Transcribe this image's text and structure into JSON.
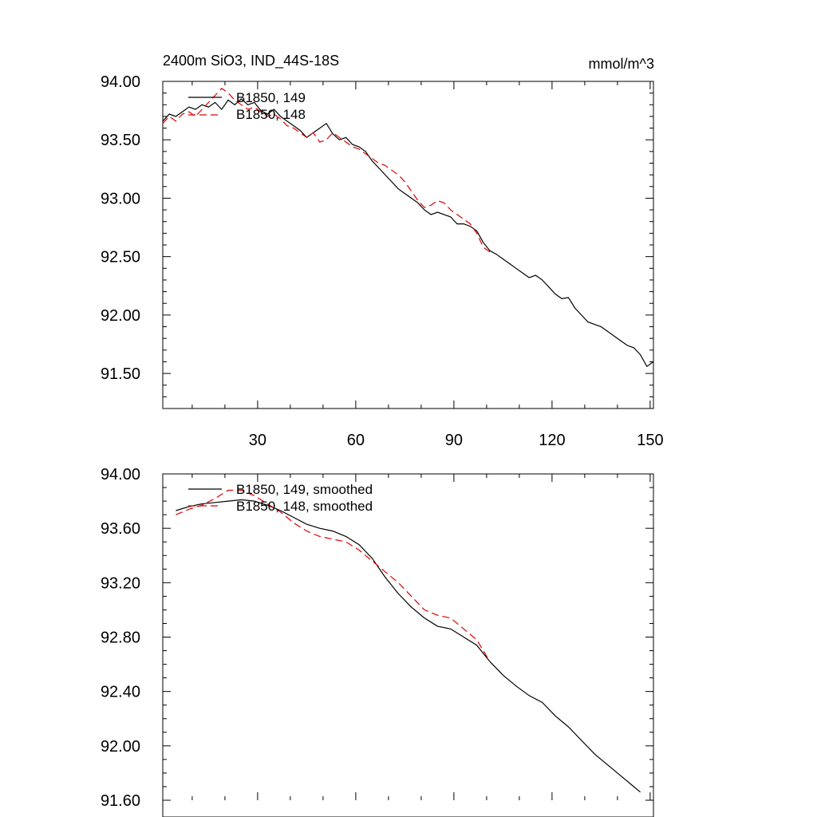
{
  "chart_data": [
    {
      "type": "line",
      "title": "2400m SiO3, IND_44S-18S",
      "units": "mmol/m^3",
      "xlim": [
        1,
        151
      ],
      "ylim": [
        91.2,
        94.0
      ],
      "xticks": [
        30,
        60,
        90,
        120,
        150
      ],
      "yticks": [
        91.5,
        92.0,
        92.5,
        93.0,
        93.5,
        94.0
      ],
      "ytick_labels": [
        "91.50",
        "92.00",
        "92.50",
        "93.00",
        "93.50",
        "94.00"
      ],
      "xtick_labels": [
        "30",
        "60",
        "90",
        "120",
        "150"
      ],
      "series": [
        {
          "name": "B1850, 149",
          "style": "solid",
          "color": "#000000",
          "points": [
            [
              1,
              93.66
            ],
            [
              3,
              93.72
            ],
            [
              5,
              93.7
            ],
            [
              7,
              93.74
            ],
            [
              9,
              93.78
            ],
            [
              11,
              93.76
            ],
            [
              13,
              93.8
            ],
            [
              15,
              93.78
            ],
            [
              17,
              93.82
            ],
            [
              19,
              93.76
            ],
            [
              21,
              93.84
            ],
            [
              23,
              93.8
            ],
            [
              25,
              93.85
            ],
            [
              27,
              93.8
            ],
            [
              29,
              93.82
            ],
            [
              31,
              93.75
            ],
            [
              33,
              93.72
            ],
            [
              35,
              93.76
            ],
            [
              37,
              93.7
            ],
            [
              39,
              93.66
            ],
            [
              41,
              93.62
            ],
            [
              43,
              93.58
            ],
            [
              45,
              93.52
            ],
            [
              47,
              93.56
            ],
            [
              49,
              93.6
            ],
            [
              51,
              93.64
            ],
            [
              53,
              93.55
            ],
            [
              55,
              93.5
            ],
            [
              57,
              93.52
            ],
            [
              59,
              93.46
            ],
            [
              61,
              93.44
            ],
            [
              63,
              93.4
            ],
            [
              65,
              93.32
            ],
            [
              67,
              93.26
            ],
            [
              69,
              93.2
            ],
            [
              71,
              93.14
            ],
            [
              73,
              93.08
            ],
            [
              75,
              93.04
            ],
            [
              77,
              93.0
            ],
            [
              79,
              92.96
            ],
            [
              81,
              92.9
            ],
            [
              83,
              92.86
            ],
            [
              85,
              92.88
            ],
            [
              87,
              92.86
            ],
            [
              89,
              92.84
            ],
            [
              91,
              92.78
            ],
            [
              93,
              92.78
            ],
            [
              95,
              92.76
            ],
            [
              97,
              92.72
            ],
            [
              99,
              92.62
            ],
            [
              101,
              92.55
            ],
            [
              103,
              92.52
            ],
            [
              105,
              92.48
            ],
            [
              107,
              92.44
            ],
            [
              109,
              92.4
            ],
            [
              111,
              92.36
            ],
            [
              113,
              92.32
            ],
            [
              115,
              92.34
            ],
            [
              117,
              92.3
            ],
            [
              119,
              92.24
            ],
            [
              121,
              92.18
            ],
            [
              123,
              92.14
            ],
            [
              125,
              92.15
            ],
            [
              127,
              92.06
            ],
            [
              129,
              92.0
            ],
            [
              131,
              91.94
            ],
            [
              133,
              91.92
            ],
            [
              135,
              91.9
            ],
            [
              137,
              91.86
            ],
            [
              139,
              91.82
            ],
            [
              141,
              91.78
            ],
            [
              143,
              91.74
            ],
            [
              145,
              91.72
            ],
            [
              147,
              91.66
            ],
            [
              149,
              91.56
            ],
            [
              151,
              91.6
            ]
          ]
        },
        {
          "name": "B1850, 148",
          "style": "dashed",
          "color": "#e00000",
          "points": [
            [
              1,
              93.64
            ],
            [
              3,
              93.7
            ],
            [
              5,
              93.66
            ],
            [
              7,
              93.72
            ],
            [
              9,
              93.74
            ],
            [
              11,
              93.7
            ],
            [
              13,
              93.76
            ],
            [
              15,
              93.82
            ],
            [
              17,
              93.88
            ],
            [
              19,
              93.94
            ],
            [
              21,
              93.9
            ],
            [
              23,
              93.84
            ],
            [
              25,
              93.8
            ],
            [
              27,
              93.76
            ],
            [
              29,
              93.78
            ],
            [
              31,
              93.74
            ],
            [
              33,
              93.7
            ],
            [
              35,
              93.72
            ],
            [
              37,
              93.68
            ],
            [
              39,
              93.62
            ],
            [
              41,
              93.6
            ],
            [
              43,
              93.56
            ],
            [
              45,
              93.52
            ],
            [
              47,
              93.56
            ],
            [
              49,
              93.48
            ],
            [
              51,
              93.5
            ],
            [
              53,
              93.56
            ],
            [
              55,
              93.52
            ],
            [
              57,
              93.48
            ],
            [
              59,
              93.44
            ],
            [
              61,
              93.42
            ],
            [
              63,
              93.38
            ],
            [
              65,
              93.34
            ],
            [
              67,
              93.3
            ],
            [
              69,
              93.28
            ],
            [
              71,
              93.24
            ],
            [
              73,
              93.2
            ],
            [
              75,
              93.14
            ],
            [
              77,
              93.06
            ],
            [
              79,
              92.98
            ],
            [
              81,
              92.92
            ],
            [
              83,
              92.94
            ],
            [
              85,
              92.98
            ],
            [
              87,
              92.96
            ],
            [
              89,
              92.9
            ],
            [
              91,
              92.86
            ],
            [
              93,
              92.82
            ],
            [
              95,
              92.78
            ],
            [
              97,
              92.7
            ],
            [
              99,
              92.58
            ],
            [
              101,
              92.54
            ]
          ]
        }
      ]
    },
    {
      "type": "line",
      "title": "",
      "xlim": [
        1,
        151
      ],
      "ylim": [
        91.6,
        94.0
      ],
      "xticks": [
        30,
        60,
        90,
        120,
        150
      ],
      "yticks": [
        91.6,
        92.0,
        92.4,
        92.8,
        93.2,
        93.6,
        94.0
      ],
      "ytick_labels": [
        "91.60",
        "92.00",
        "92.40",
        "92.80",
        "93.20",
        "93.60",
        "94.00"
      ],
      "series": [
        {
          "name": "B1850, 149, smoothed",
          "style": "solid",
          "color": "#000000",
          "points": [
            [
              5,
              93.73
            ],
            [
              9,
              93.76
            ],
            [
              13,
              93.78
            ],
            [
              17,
              93.79
            ],
            [
              21,
              93.8
            ],
            [
              25,
              93.81
            ],
            [
              29,
              93.8
            ],
            [
              33,
              93.77
            ],
            [
              37,
              93.73
            ],
            [
              41,
              93.68
            ],
            [
              45,
              93.63
            ],
            [
              49,
              93.6
            ],
            [
              53,
              93.58
            ],
            [
              57,
              93.54
            ],
            [
              61,
              93.48
            ],
            [
              65,
              93.38
            ],
            [
              69,
              93.24
            ],
            [
              73,
              93.12
            ],
            [
              77,
              93.02
            ],
            [
              81,
              92.94
            ],
            [
              85,
              92.88
            ],
            [
              89,
              92.86
            ],
            [
              93,
              92.8
            ],
            [
              97,
              92.74
            ],
            [
              101,
              92.62
            ],
            [
              105,
              92.52
            ],
            [
              109,
              92.44
            ],
            [
              113,
              92.37
            ],
            [
              117,
              92.32
            ],
            [
              121,
              92.22
            ],
            [
              125,
              92.14
            ],
            [
              129,
              92.04
            ],
            [
              133,
              91.94
            ],
            [
              137,
              91.86
            ],
            [
              141,
              91.78
            ],
            [
              145,
              91.7
            ],
            [
              147,
              91.66
            ]
          ]
        },
        {
          "name": "B1850, 148, smoothed",
          "style": "dashed",
          "color": "#e00000",
          "points": [
            [
              5,
              93.7
            ],
            [
              9,
              93.74
            ],
            [
              13,
              93.77
            ],
            [
              17,
              93.82
            ],
            [
              21,
              93.88
            ],
            [
              25,
              93.88
            ],
            [
              29,
              93.84
            ],
            [
              33,
              93.78
            ],
            [
              37,
              93.72
            ],
            [
              41,
              93.64
            ],
            [
              45,
              93.58
            ],
            [
              49,
              93.54
            ],
            [
              53,
              93.52
            ],
            [
              57,
              93.5
            ],
            [
              61,
              93.44
            ],
            [
              65,
              93.36
            ],
            [
              69,
              93.28
            ],
            [
              73,
              93.2
            ],
            [
              77,
              93.1
            ],
            [
              81,
              93.0
            ],
            [
              85,
              92.96
            ],
            [
              89,
              92.94
            ],
            [
              93,
              92.86
            ],
            [
              97,
              92.78
            ],
            [
              101,
              92.62
            ]
          ]
        }
      ]
    }
  ]
}
